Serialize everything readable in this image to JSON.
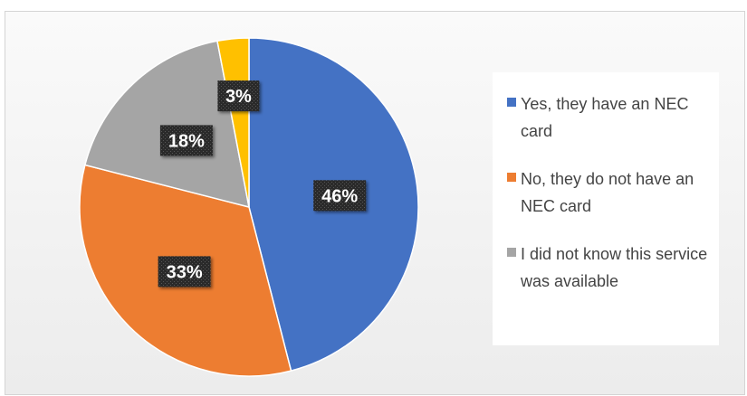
{
  "chart_data": {
    "type": "pie",
    "slices": [
      {
        "label": "Yes, they have an NEC card",
        "value": 46,
        "display": "46%",
        "color": "#4472C4"
      },
      {
        "label": "No, they do not have an NEC card",
        "value": 33,
        "display": "33%",
        "color": "#ED7D31"
      },
      {
        "label": "I did not know this service was available",
        "value": 18,
        "display": "18%",
        "color": "#A5A5A5"
      },
      {
        "label": "",
        "value": 3,
        "display": "3%",
        "color": "#FFC000"
      }
    ],
    "start_angle_degrees": 0,
    "direction": "clockwise",
    "data_labels": true,
    "legend_position": "right",
    "title": ""
  },
  "legend": {
    "items": [
      {
        "label": "Yes, they have an NEC card",
        "color": "#4472C4"
      },
      {
        "label": "No, they do not have an NEC card",
        "color": "#ED7D31"
      },
      {
        "label": "I did not know this service was available",
        "color": "#A5A5A5"
      }
    ]
  }
}
